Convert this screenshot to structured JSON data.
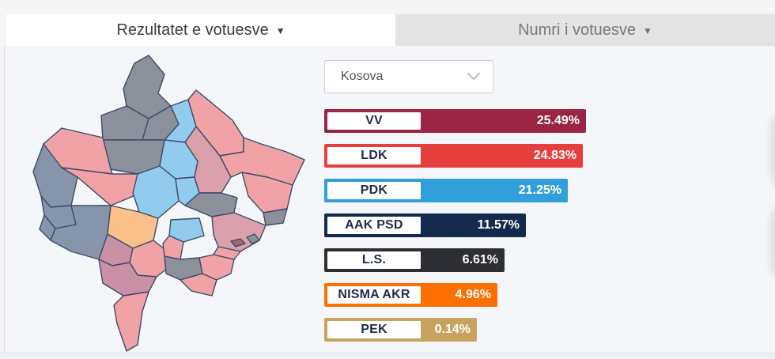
{
  "tabs": [
    {
      "label": "Rezultatet e votuesve",
      "active": true
    },
    {
      "label": "Numri i votuesve",
      "active": false
    }
  ],
  "icons": {
    "caret_down": "▼"
  },
  "filter": {
    "selected_region": "Kosova"
  },
  "chart_data": {
    "type": "bar",
    "title": "Rezultatet e votuesve — Kosova",
    "orientation": "horizontal",
    "categories": [
      "VV",
      "LDK",
      "PDK",
      "AAK PSD",
      "L.S.",
      "NISMA AKR",
      "PEK"
    ],
    "values": [
      25.49,
      24.83,
      21.25,
      11.57,
      6.61,
      4.96,
      0.14
    ],
    "value_labels": [
      "25.49%",
      "24.83%",
      "21.25%",
      "11.57%",
      "6.61%",
      "4.96%",
      "0.14%"
    ],
    "unit": "%",
    "bar_colors": [
      "#9b2343",
      "#e6403e",
      "#319fd9",
      "#132a4e",
      "#2d2f35",
      "#fe6f01",
      "#c7a360"
    ],
    "legend_position": "none",
    "grid": false
  },
  "map": {
    "description": "Kosovo municipalities choropleth colored by leading party",
    "stroke_color": "#3d4c68",
    "party_tints": {
      "vv_mauve": "#db9fab",
      "vv_mauve_dark": "#ca90a5",
      "ldk_salmon": "#f0a2a7",
      "pdk_blue": "#92cbee",
      "aak_slate": "#8795ab",
      "srpska_gray": "#8b909b",
      "nisma_orange": "#f9c08a",
      "small_dark": "#9b6b74"
    },
    "regions": [
      {
        "color": "#8b909b"
      },
      {
        "color": "#8b909b"
      },
      {
        "color": "#8b909b"
      },
      {
        "color": "#92cbee"
      },
      {
        "color": "#f0a2a7"
      },
      {
        "color": "#8b909b"
      },
      {
        "color": "#92cbee"
      },
      {
        "color": "#f0a2a7"
      },
      {
        "color": "#8795ab"
      },
      {
        "color": "#f0a2a7"
      },
      {
        "color": "#92cbee"
      },
      {
        "color": "#92cbee"
      },
      {
        "color": "#db9fab"
      },
      {
        "color": "#f0a2a7"
      },
      {
        "color": "#f0a2a7"
      },
      {
        "color": "#8b909b"
      },
      {
        "color": "#8b909b"
      },
      {
        "color": "#db9fab"
      },
      {
        "color": "#8795ab"
      },
      {
        "color": "#8795ab"
      },
      {
        "color": "#8795ab"
      },
      {
        "color": "#f9c08a"
      },
      {
        "color": "#ca90a5"
      },
      {
        "color": "#f0a2a7"
      },
      {
        "color": "#ca90a5"
      },
      {
        "color": "#f0a2a7"
      },
      {
        "color": "#92cbee"
      },
      {
        "color": "#f0a2a7"
      },
      {
        "color": "#8b909b"
      },
      {
        "color": "#f0a2a7"
      },
      {
        "color": "#f0a2a7"
      },
      {
        "color": "#f0a2a7"
      },
      {
        "color": "#8b909b"
      },
      {
        "color": "#9b6b74"
      }
    ]
  }
}
